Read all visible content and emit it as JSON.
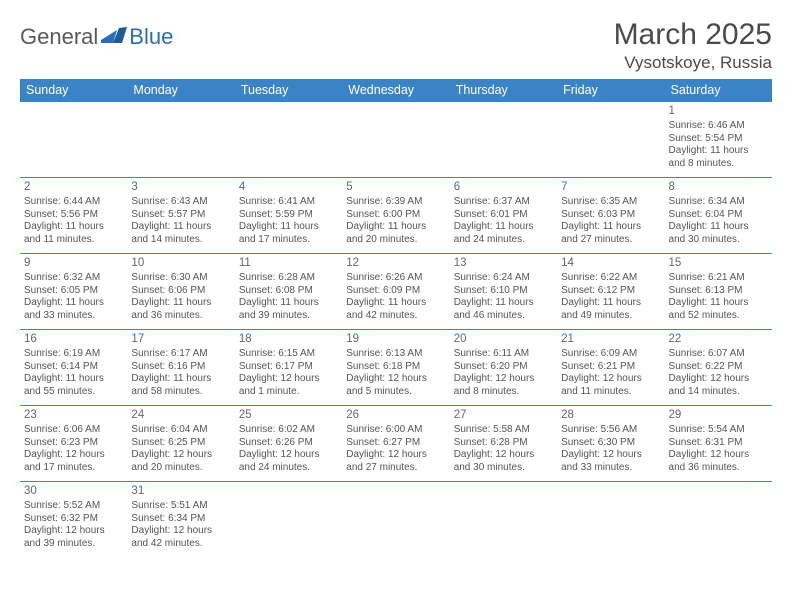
{
  "header": {
    "logo_general": "Genera",
    "logo_l": "l",
    "logo_blue": "Blue",
    "month_title": "March 2025",
    "location": "Vysotskoye, Russia"
  },
  "days": [
    "Sunday",
    "Monday",
    "Tuesday",
    "Wednesday",
    "Thursday",
    "Friday",
    "Saturday"
  ],
  "colors": {
    "header_bg": "#3b83c7",
    "header_text": "#ffffff",
    "border": "#3b83c7",
    "body_text": "#555555",
    "title_text": "#4a4a4a",
    "logo_gray": "#5a5a5a",
    "logo_blue": "#2a6eb8"
  },
  "weeks": [
    [
      null,
      null,
      null,
      null,
      null,
      null,
      {
        "n": "1",
        "sr": "Sunrise: 6:46 AM",
        "ss": "Sunset: 5:54 PM",
        "d1": "Daylight: 11 hours",
        "d2": "and 8 minutes."
      }
    ],
    [
      {
        "n": "2",
        "sr": "Sunrise: 6:44 AM",
        "ss": "Sunset: 5:56 PM",
        "d1": "Daylight: 11 hours",
        "d2": "and 11 minutes."
      },
      {
        "n": "3",
        "sr": "Sunrise: 6:43 AM",
        "ss": "Sunset: 5:57 PM",
        "d1": "Daylight: 11 hours",
        "d2": "and 14 minutes."
      },
      {
        "n": "4",
        "sr": "Sunrise: 6:41 AM",
        "ss": "Sunset: 5:59 PM",
        "d1": "Daylight: 11 hours",
        "d2": "and 17 minutes."
      },
      {
        "n": "5",
        "sr": "Sunrise: 6:39 AM",
        "ss": "Sunset: 6:00 PM",
        "d1": "Daylight: 11 hours",
        "d2": "and 20 minutes."
      },
      {
        "n": "6",
        "sr": "Sunrise: 6:37 AM",
        "ss": "Sunset: 6:01 PM",
        "d1": "Daylight: 11 hours",
        "d2": "and 24 minutes."
      },
      {
        "n": "7",
        "sr": "Sunrise: 6:35 AM",
        "ss": "Sunset: 6:03 PM",
        "d1": "Daylight: 11 hours",
        "d2": "and 27 minutes."
      },
      {
        "n": "8",
        "sr": "Sunrise: 6:34 AM",
        "ss": "Sunset: 6:04 PM",
        "d1": "Daylight: 11 hours",
        "d2": "and 30 minutes."
      }
    ],
    [
      {
        "n": "9",
        "sr": "Sunrise: 6:32 AM",
        "ss": "Sunset: 6:05 PM",
        "d1": "Daylight: 11 hours",
        "d2": "and 33 minutes."
      },
      {
        "n": "10",
        "sr": "Sunrise: 6:30 AM",
        "ss": "Sunset: 6:06 PM",
        "d1": "Daylight: 11 hours",
        "d2": "and 36 minutes."
      },
      {
        "n": "11",
        "sr": "Sunrise: 6:28 AM",
        "ss": "Sunset: 6:08 PM",
        "d1": "Daylight: 11 hours",
        "d2": "and 39 minutes."
      },
      {
        "n": "12",
        "sr": "Sunrise: 6:26 AM",
        "ss": "Sunset: 6:09 PM",
        "d1": "Daylight: 11 hours",
        "d2": "and 42 minutes."
      },
      {
        "n": "13",
        "sr": "Sunrise: 6:24 AM",
        "ss": "Sunset: 6:10 PM",
        "d1": "Daylight: 11 hours",
        "d2": "and 46 minutes."
      },
      {
        "n": "14",
        "sr": "Sunrise: 6:22 AM",
        "ss": "Sunset: 6:12 PM",
        "d1": "Daylight: 11 hours",
        "d2": "and 49 minutes."
      },
      {
        "n": "15",
        "sr": "Sunrise: 6:21 AM",
        "ss": "Sunset: 6:13 PM",
        "d1": "Daylight: 11 hours",
        "d2": "and 52 minutes."
      }
    ],
    [
      {
        "n": "16",
        "sr": "Sunrise: 6:19 AM",
        "ss": "Sunset: 6:14 PM",
        "d1": "Daylight: 11 hours",
        "d2": "and 55 minutes."
      },
      {
        "n": "17",
        "sr": "Sunrise: 6:17 AM",
        "ss": "Sunset: 6:16 PM",
        "d1": "Daylight: 11 hours",
        "d2": "and 58 minutes."
      },
      {
        "n": "18",
        "sr": "Sunrise: 6:15 AM",
        "ss": "Sunset: 6:17 PM",
        "d1": "Daylight: 12 hours",
        "d2": "and 1 minute."
      },
      {
        "n": "19",
        "sr": "Sunrise: 6:13 AM",
        "ss": "Sunset: 6:18 PM",
        "d1": "Daylight: 12 hours",
        "d2": "and 5 minutes."
      },
      {
        "n": "20",
        "sr": "Sunrise: 6:11 AM",
        "ss": "Sunset: 6:20 PM",
        "d1": "Daylight: 12 hours",
        "d2": "and 8 minutes."
      },
      {
        "n": "21",
        "sr": "Sunrise: 6:09 AM",
        "ss": "Sunset: 6:21 PM",
        "d1": "Daylight: 12 hours",
        "d2": "and 11 minutes."
      },
      {
        "n": "22",
        "sr": "Sunrise: 6:07 AM",
        "ss": "Sunset: 6:22 PM",
        "d1": "Daylight: 12 hours",
        "d2": "and 14 minutes."
      }
    ],
    [
      {
        "n": "23",
        "sr": "Sunrise: 6:06 AM",
        "ss": "Sunset: 6:23 PM",
        "d1": "Daylight: 12 hours",
        "d2": "and 17 minutes."
      },
      {
        "n": "24",
        "sr": "Sunrise: 6:04 AM",
        "ss": "Sunset: 6:25 PM",
        "d1": "Daylight: 12 hours",
        "d2": "and 20 minutes."
      },
      {
        "n": "25",
        "sr": "Sunrise: 6:02 AM",
        "ss": "Sunset: 6:26 PM",
        "d1": "Daylight: 12 hours",
        "d2": "and 24 minutes."
      },
      {
        "n": "26",
        "sr": "Sunrise: 6:00 AM",
        "ss": "Sunset: 6:27 PM",
        "d1": "Daylight: 12 hours",
        "d2": "and 27 minutes."
      },
      {
        "n": "27",
        "sr": "Sunrise: 5:58 AM",
        "ss": "Sunset: 6:28 PM",
        "d1": "Daylight: 12 hours",
        "d2": "and 30 minutes."
      },
      {
        "n": "28",
        "sr": "Sunrise: 5:56 AM",
        "ss": "Sunset: 6:30 PM",
        "d1": "Daylight: 12 hours",
        "d2": "and 33 minutes."
      },
      {
        "n": "29",
        "sr": "Sunrise: 5:54 AM",
        "ss": "Sunset: 6:31 PM",
        "d1": "Daylight: 12 hours",
        "d2": "and 36 minutes."
      }
    ],
    [
      {
        "n": "30",
        "sr": "Sunrise: 5:52 AM",
        "ss": "Sunset: 6:32 PM",
        "d1": "Daylight: 12 hours",
        "d2": "and 39 minutes."
      },
      {
        "n": "31",
        "sr": "Sunrise: 5:51 AM",
        "ss": "Sunset: 6:34 PM",
        "d1": "Daylight: 12 hours",
        "d2": "and 42 minutes."
      },
      null,
      null,
      null,
      null,
      null
    ]
  ]
}
